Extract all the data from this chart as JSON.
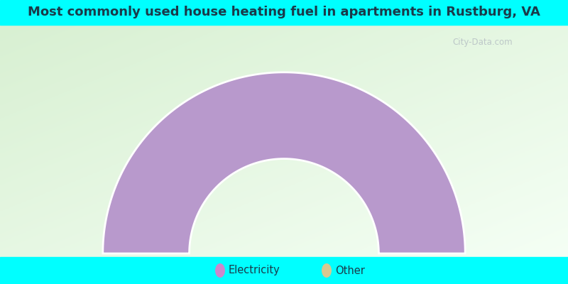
{
  "title": "Most commonly used house heating fuel in apartments in Rustburg, VA",
  "title_color": "#1a3a4a",
  "title_fontsize": 13,
  "cyan_color": "#00FFFF",
  "bg_green": [
    216,
    240,
    210
  ],
  "bg_white": [
    245,
    255,
    245
  ],
  "donut_color": "#b899cc",
  "legend_entries": [
    "Electricity",
    "Other"
  ],
  "legend_colors": [
    "#cc88cc",
    "#d8c890"
  ],
  "watermark": "City-Data.com",
  "outer_R": 0.88,
  "inner_R": 0.46
}
